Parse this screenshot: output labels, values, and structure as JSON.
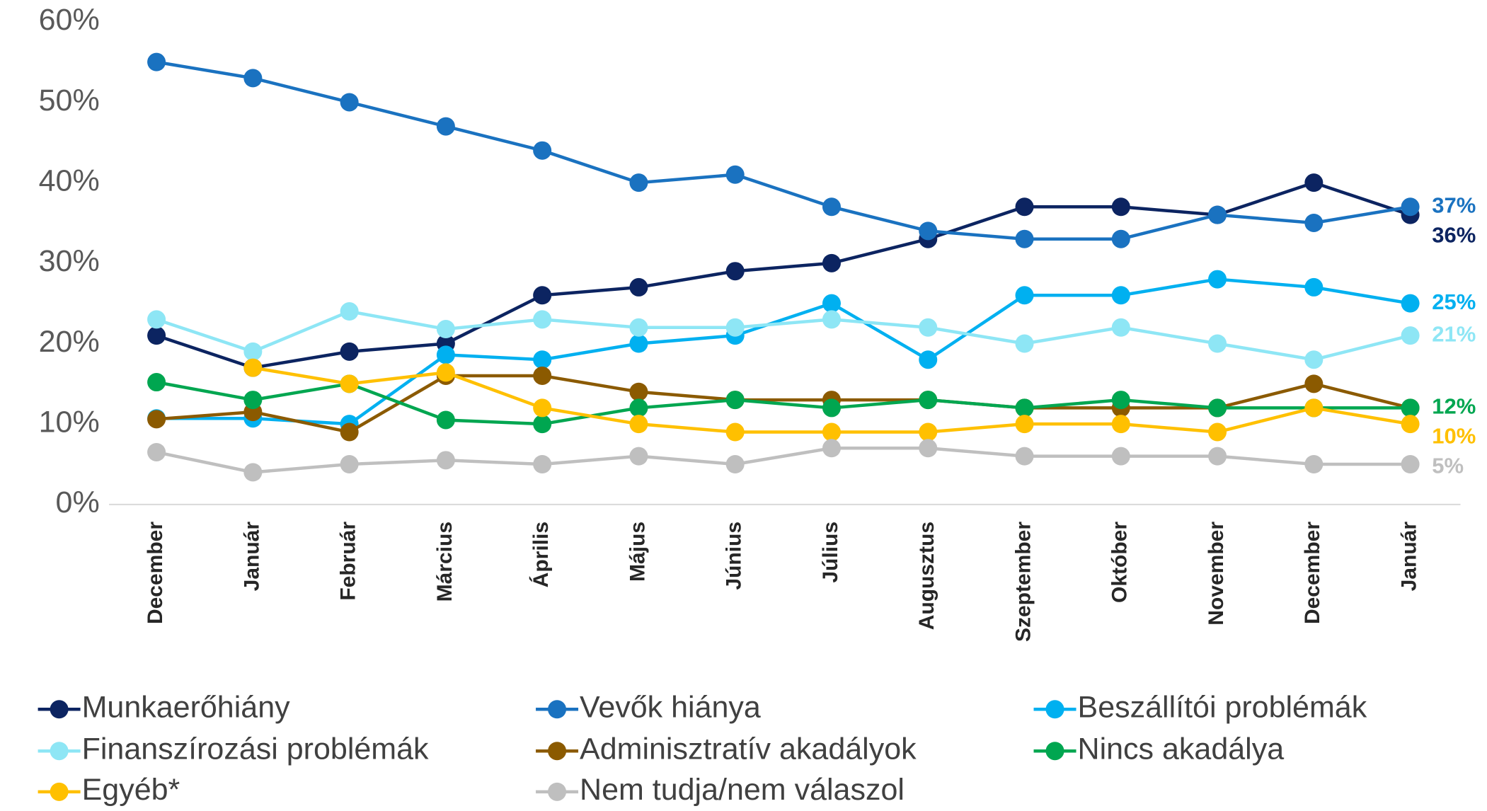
{
  "chart_data": {
    "type": "line",
    "categories": [
      "December",
      "Január",
      "Február",
      "Március",
      "Április",
      "Május",
      "Június",
      "Július",
      "Augusztus",
      "Szeptember",
      "Október",
      "November",
      "December",
      "Január"
    ],
    "ylim": [
      0,
      60
    ],
    "yticks": [
      {
        "value": 0,
        "label": "0%"
      },
      {
        "value": 10,
        "label": "10%"
      },
      {
        "value": 20,
        "label": "20%"
      },
      {
        "value": 30,
        "label": "30%"
      },
      {
        "value": 40,
        "label": "40%"
      },
      {
        "value": 50,
        "label": "50%"
      },
      {
        "value": 60,
        "label": "60%"
      }
    ],
    "series": [
      {
        "name": "Munkaerőhiány",
        "color": "#0c2461",
        "values": [
          21,
          17,
          19,
          20,
          26,
          27,
          29,
          30,
          33,
          37,
          37,
          36,
          40,
          36
        ],
        "value_labels": [
          null,
          null,
          null,
          null,
          null,
          null,
          null,
          null,
          null,
          null,
          null,
          null,
          null,
          "36%"
        ]
      },
      {
        "name": "Vevők hiánya",
        "color": "#1a72c0",
        "values": [
          55,
          53,
          50,
          47,
          44,
          40,
          41,
          37,
          34,
          33,
          33,
          36,
          35,
          37
        ],
        "value_labels": [
          null,
          null,
          null,
          null,
          null,
          null,
          null,
          null,
          null,
          null,
          null,
          null,
          null,
          "37%"
        ]
      },
      {
        "name": "Beszállítói problémák",
        "color": "#00b0f0",
        "values": [
          10.7,
          10.7,
          10,
          18.6,
          18,
          20,
          21,
          25,
          18,
          26,
          26,
          28,
          27,
          25
        ],
        "value_labels": [
          null,
          null,
          null,
          null,
          null,
          null,
          null,
          null,
          null,
          null,
          null,
          null,
          null,
          "25%"
        ]
      },
      {
        "name": "Finanszírozási problémák",
        "color": "#8ee6f5",
        "values": [
          23,
          19,
          24,
          21.8,
          23,
          22,
          22,
          23,
          22,
          20,
          22,
          20,
          18,
          21
        ],
        "value_labels": [
          null,
          null,
          null,
          null,
          null,
          null,
          null,
          null,
          null,
          null,
          null,
          null,
          null,
          "21%"
        ]
      },
      {
        "name": "Adminisztratív akadályok",
        "color": "#8b5a00",
        "values": [
          10.6,
          11.5,
          9,
          16,
          16,
          14,
          13,
          13,
          13,
          12,
          12,
          12,
          15,
          12
        ]
      },
      {
        "name": "Nincs akadálya",
        "color": "#00a650",
        "values": [
          15.2,
          13,
          15,
          10.5,
          10,
          12,
          13,
          12,
          13,
          12,
          13,
          12,
          12,
          12
        ],
        "value_labels": [
          null,
          null,
          null,
          null,
          null,
          null,
          null,
          null,
          null,
          null,
          null,
          null,
          null,
          "12%"
        ]
      },
      {
        "name": "Egyéb*",
        "color": "#ffc000",
        "values": [
          null,
          17,
          15,
          16.4,
          12,
          10,
          9,
          9,
          9,
          10,
          10,
          9,
          12,
          10
        ],
        "value_labels": [
          null,
          null,
          null,
          null,
          null,
          null,
          null,
          null,
          null,
          null,
          null,
          null,
          null,
          "10%"
        ]
      },
      {
        "name": "Nem tudja/nem válaszol",
        "color": "#bfbfbf",
        "values": [
          6.5,
          4,
          5,
          5.5,
          5,
          6,
          5,
          7,
          7,
          6,
          6,
          6,
          5,
          5
        ],
        "value_labels": [
          null,
          null,
          null,
          null,
          null,
          null,
          null,
          null,
          null,
          null,
          null,
          null,
          null,
          "5%"
        ]
      }
    ]
  }
}
